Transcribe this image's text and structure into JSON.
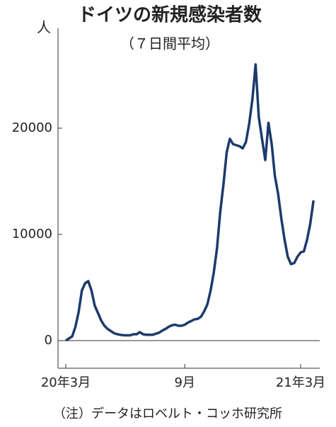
{
  "chart_data": {
    "type": "line",
    "title": "ドイツの新規感染者数",
    "subtitle": "（７日間平均）",
    "y_unit": "人",
    "note": "（注）データはロベルト・コッホ研究所",
    "categories": [
      "20年3月",
      null,
      null,
      null,
      null,
      null,
      null,
      null,
      null,
      null,
      null,
      null,
      null,
      null,
      null,
      null,
      null,
      null,
      null,
      null,
      null,
      null,
      null,
      null,
      null,
      null,
      null,
      null,
      null,
      null,
      null,
      null,
      null,
      null,
      null,
      null,
      null,
      "9月",
      null,
      null,
      null,
      null,
      null,
      null,
      null,
      null,
      null,
      null,
      null,
      null,
      null,
      null,
      null,
      null,
      null,
      null,
      null,
      null,
      null,
      null,
      null,
      null,
      null,
      null,
      null,
      null,
      null,
      null,
      null,
      null,
      null,
      null,
      null,
      "21年3月",
      null,
      null,
      null,
      null
    ],
    "series": [
      {
        "color": "#1c3a6b",
        "values": [
          0,
          200,
          400,
          1300,
          2700,
          4700,
          5400,
          5600,
          4700,
          3300,
          2600,
          1900,
          1400,
          1100,
          900,
          700,
          600,
          550,
          500,
          500,
          500,
          600,
          600,
          800,
          600,
          550,
          550,
          550,
          650,
          750,
          950,
          1100,
          1300,
          1450,
          1500,
          1400,
          1400,
          1500,
          1700,
          1850,
          2000,
          2050,
          2250,
          2750,
          3400,
          4700,
          6400,
          8700,
          12100,
          14700,
          17700,
          19000,
          18500,
          18400,
          18300,
          18100,
          18700,
          20400,
          22700,
          26000,
          21000,
          19000,
          17000,
          20500,
          18500,
          15500,
          13800,
          11500,
          9500,
          7900,
          7200,
          7300,
          7900,
          8300,
          8400,
          9500,
          11000,
          13200
        ]
      }
    ],
    "ylim": [
      -2600,
      29400
    ],
    "yticks": [
      0,
      10000,
      20000
    ]
  }
}
